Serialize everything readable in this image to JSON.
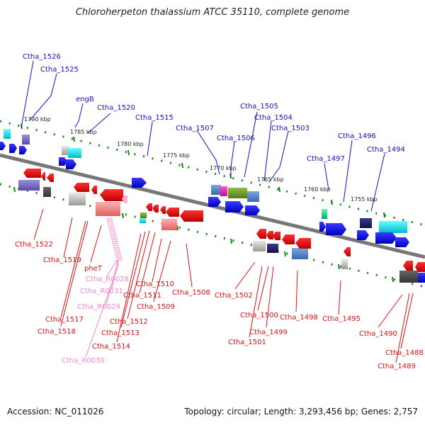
{
  "title": "Chloroherpeton thalassium ATCC 35110, complete genome",
  "footer": {
    "accession": "Accession: NC_011026",
    "summary": "Topology: circular; Length: 3,293,456 bp; Genes: 2,757"
  },
  "colors": {
    "upper_labels": "#1010cc",
    "lower_labels": "#dd1111",
    "rna_labels": "#ee88cc",
    "tick": "#118811",
    "backbone": "#777777"
  },
  "positions": {
    "p1790": "1790 kbp",
    "p1785": "1785 kbp",
    "p1780": "1780 kbp",
    "p1775": "1775 kbp",
    "p1770": "1770 kbp",
    "p1765": "1765 kbp",
    "p1760": "1760 kbp",
    "p1755": "1755 kbp"
  },
  "upper_genes": {
    "g1526": "Ctha_1526",
    "g1525": "Ctha_1525",
    "engB": "engB",
    "g1520": "Ctha_1520",
    "g1515": "Ctha_1515",
    "g1507": "Ctha_1507",
    "g1506": "Ctha_1506",
    "g1505": "Ctha_1505",
    "g1504": "Ctha_1504",
    "g1503": "Ctha_1503",
    "g1497": "Ctha_1497",
    "g1496": "Ctha_1496",
    "g1494": "Ctha_1494"
  },
  "lower_genes": {
    "g1522": "Ctha_1522",
    "g1519": "Ctha_1519",
    "pheT": "pheT",
    "g1517": "Ctha_1517",
    "g1518": "Ctha_1518",
    "g1512": "Ctha_1512",
    "g1513": "Ctha_1513",
    "g1514": "Ctha_1514",
    "g1511": "Ctha_1511",
    "g1510": "Ctha_1510",
    "g1509": "Ctha_1509",
    "g1508": "Ctha_1508",
    "g1502": "Ctha_1502",
    "g1500": "Ctha_1500",
    "g1501": "Ctha_1501",
    "g1499": "Ctha_1499",
    "g1498": "Ctha_1498",
    "g1495": "Ctha_1495",
    "g1490": "Ctha_1490",
    "g1488": "Ctha_1488",
    "g1489": "Ctha_1489"
  },
  "rna_genes": {
    "r0028": "Ctha_R0028",
    "r0031": "Ctha_R0031",
    "r0029": "Ctha_R0029",
    "r0030": "Ctha_R0030"
  }
}
